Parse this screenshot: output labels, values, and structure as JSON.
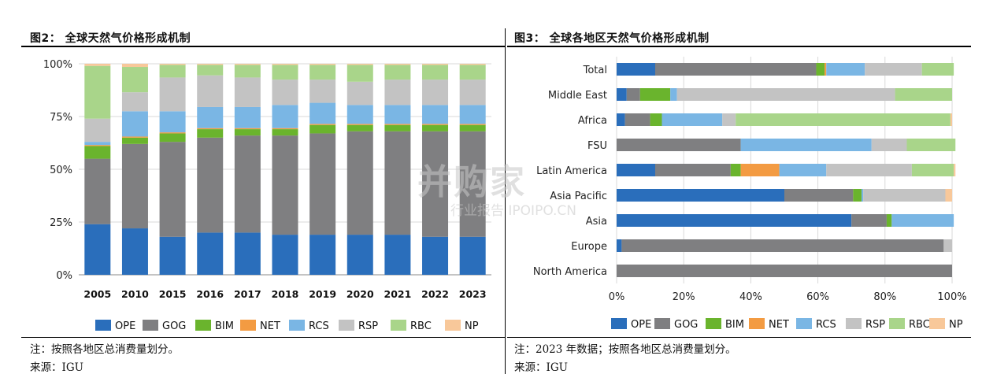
{
  "watermark": {
    "main": "并购家",
    "sub": "行业报告 IPOIPO.CN"
  },
  "legend": {
    "items": [
      {
        "label": "OPE",
        "color": "#2a6ebb"
      },
      {
        "label": "GOG",
        "color": "#7f7f81"
      },
      {
        "label": "BIM",
        "color": "#6ab42d"
      },
      {
        "label": "NET",
        "color": "#f39b42"
      },
      {
        "label": "RCS",
        "color": "#7ab6e4"
      },
      {
        "label": "RSP",
        "color": "#c3c3c3"
      },
      {
        "label": "RBC",
        "color": "#a9d58a"
      },
      {
        "label": "NP",
        "color": "#f8c89a"
      }
    ]
  },
  "left": {
    "title": "图2：  全球天然气价格形成机制",
    "note": "注：按照各地区总消费量划分。",
    "source": "来源：IGU"
  },
  "right": {
    "title": "图3：  全球各地区天然气价格形成机制",
    "note": "注：2023 年数据；按照各地区总消费量划分。",
    "source": "来源：IGU"
  },
  "chart_data": [
    {
      "type": "bar",
      "stacked": true,
      "orientation": "vertical",
      "categories": [
        "2005",
        "2010",
        "2015",
        "2016",
        "2017",
        "2018",
        "2019",
        "2020",
        "2021",
        "2022",
        "2023"
      ],
      "ylim": [
        0,
        100
      ],
      "yticks": [
        "0%",
        "25%",
        "50%",
        "75%",
        "100%"
      ],
      "grid": true,
      "legend_position": "bottom",
      "series": [
        {
          "name": "OPE",
          "values": [
            24,
            22,
            18,
            20,
            20,
            19,
            19,
            19,
            19,
            18,
            18
          ]
        },
        {
          "name": "GOG",
          "values": [
            31,
            40,
            45,
            45,
            46,
            47,
            48,
            49,
            49,
            50,
            50
          ]
        },
        {
          "name": "BIM",
          "values": [
            6,
            3,
            4,
            4,
            3,
            3,
            4,
            3,
            3,
            3,
            3
          ]
        },
        {
          "name": "NET",
          "values": [
            0.5,
            0.5,
            0.5,
            0.5,
            0.5,
            0.5,
            0.5,
            0.5,
            0.5,
            0.5,
            0.5
          ]
        },
        {
          "name": "RCS",
          "values": [
            1.5,
            12,
            10,
            10,
            10,
            11,
            10,
            9,
            9,
            9,
            9
          ]
        },
        {
          "name": "RSP",
          "values": [
            11,
            9,
            16,
            15,
            14,
            12,
            11,
            11,
            12,
            12,
            12
          ]
        },
        {
          "name": "RBC",
          "values": [
            25,
            12,
            6,
            5,
            6,
            7,
            7,
            8,
            7,
            7,
            7
          ]
        },
        {
          "name": "NP",
          "values": [
            1,
            1.5,
            0.5,
            0.5,
            0.5,
            0.5,
            0.5,
            0.5,
            0.5,
            0.5,
            0.5
          ]
        }
      ]
    },
    {
      "type": "bar",
      "stacked": true,
      "orientation": "horizontal",
      "categories": [
        "Total",
        "Middle East",
        "Africa",
        "FSU",
        "Latin America",
        "Asia Pacific",
        "Asia",
        "Europe",
        "North America"
      ],
      "xlim": [
        0,
        100
      ],
      "xticks": [
        "0%",
        "20%",
        "40%",
        "60%",
        "80%",
        "100%"
      ],
      "grid": true,
      "legend_position": "bottom",
      "series": [
        {
          "name": "OPE",
          "values": [
            11.5,
            3,
            2.5,
            0,
            11.5,
            50,
            70,
            1.5,
            0
          ]
        },
        {
          "name": "GOG",
          "values": [
            48,
            4,
            7.5,
            37,
            22.5,
            20.5,
            10.5,
            96,
            100
          ]
        },
        {
          "name": "BIM",
          "values": [
            2.5,
            9,
            3.5,
            0,
            3,
            2.5,
            1.5,
            0,
            0
          ]
        },
        {
          "name": "NET",
          "values": [
            0.5,
            0,
            0,
            0,
            11.5,
            0,
            0,
            0,
            0
          ]
        },
        {
          "name": "RCS",
          "values": [
            11.5,
            2,
            18,
            39,
            14,
            0.5,
            18.5,
            0,
            0
          ]
        },
        {
          "name": "RSP",
          "values": [
            17,
            65,
            4,
            10.5,
            25.5,
            24.5,
            0,
            2.5,
            0
          ]
        },
        {
          "name": "RBC",
          "values": [
            9.5,
            17,
            64,
            14.5,
            12.5,
            0,
            0,
            0,
            0
          ]
        },
        {
          "name": "NP",
          "values": [
            0,
            0,
            0.5,
            0,
            0.5,
            2,
            0,
            0,
            0
          ]
        }
      ]
    }
  ]
}
